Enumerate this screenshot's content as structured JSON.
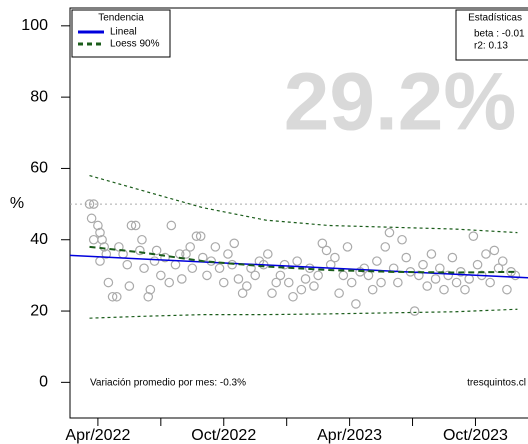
{
  "chart_data": {
    "type": "scatter",
    "y_label": "%",
    "big_value": "29.2%",
    "legend_title": "Tendencia",
    "stats_title": "Estadísticas",
    "stats": [
      "beta : -0.01",
      "r2: 0.13"
    ],
    "footnote_left": "Variación promedio por mes: -0.3%",
    "footnote_right": "tresquintos.cl",
    "xlim": [
      -1.33,
      20.6
    ],
    "ylim": [
      -10,
      105
    ],
    "xticks": [
      {
        "value": 0,
        "label": "Apr/2022"
      },
      {
        "value": 6,
        "label": "Oct/2022"
      },
      {
        "value": 12,
        "label": "Apr/2023"
      },
      {
        "value": 18,
        "label": "Oct/2023"
      }
    ],
    "xminorticks": [
      3,
      9,
      15
    ],
    "yticks": [
      0,
      20,
      40,
      60,
      80,
      100
    ],
    "reference_line": 50,
    "point_color": "#aaaaaa",
    "x": [
      -0.4,
      -0.2,
      -0.3,
      0,
      0.1,
      0.2,
      0.3,
      -0.2,
      0.1,
      0.4,
      0.5,
      0.7,
      0.9,
      1.0,
      1.2,
      1.4,
      1.5,
      1.6,
      1.8,
      2.0,
      2.1,
      2.2,
      2.4,
      2.5,
      2.7,
      2.8,
      3.0,
      3.2,
      3.4,
      3.5,
      3.7,
      3.9,
      4.0,
      4.2,
      4.4,
      4.5,
      4.7,
      4.9,
      5.0,
      5.2,
      5.4,
      5.6,
      5.8,
      6.0,
      6.2,
      6.4,
      6.5,
      6.7,
      6.9,
      7.1,
      7.3,
      7.5,
      7.7,
      7.9,
      8.1,
      8.3,
      8.5,
      8.7,
      8.9,
      9.1,
      9.3,
      9.5,
      9.7,
      9.9,
      10.1,
      10.3,
      10.5,
      10.7,
      10.9,
      11.1,
      11.3,
      11.5,
      11.7,
      11.9,
      12.1,
      12.3,
      12.5,
      12.7,
      12.9,
      13.1,
      13.3,
      13.5,
      13.7,
      13.9,
      14.1,
      14.3,
      14.5,
      14.7,
      14.9,
      15.1,
      15.3,
      15.5,
      15.7,
      15.9,
      16.1,
      16.3,
      16.5,
      16.7,
      16.9,
      17.1,
      17.3,
      17.5,
      17.7,
      17.9,
      18.1,
      18.3,
      18.5,
      18.7,
      18.9,
      19.1,
      19.3,
      19.5,
      19.7,
      19.9
    ],
    "values": [
      50,
      50,
      46,
      44,
      42,
      40,
      38,
      40,
      34,
      36,
      28,
      24,
      24,
      38,
      36,
      33,
      27,
      44,
      44,
      37,
      40,
      32,
      24,
      26,
      34,
      37,
      30,
      35,
      28,
      44,
      33,
      36,
      29,
      36,
      38,
      32,
      41,
      41,
      35,
      30,
      34,
      38,
      32,
      28,
      36,
      33,
      39,
      29,
      25,
      27,
      32,
      30,
      34,
      33,
      36,
      25,
      28,
      30,
      33,
      28,
      24,
      34,
      26,
      29,
      32,
      27,
      30,
      39,
      37,
      33,
      35,
      25,
      30,
      38,
      28,
      22,
      31,
      32,
      30,
      26,
      34,
      28,
      38,
      42,
      32,
      28,
      40,
      35,
      31,
      20,
      30,
      33,
      27,
      36,
      29,
      32,
      26,
      30,
      35,
      28,
      31,
      26,
      29,
      41,
      33,
      30,
      36,
      28,
      37,
      32,
      34,
      26,
      31,
      30
    ],
    "series": [
      {
        "name": "Lineal",
        "color": "#0000dd",
        "x": [
          -1.33,
          20.6
        ],
        "values": [
          35.6,
          29.3
        ]
      },
      {
        "name": "Loess 90%",
        "color": "#1a5c1a",
        "x": [
          -0.4,
          2,
          5,
          8,
          11,
          14,
          17,
          20
        ],
        "values": [
          38,
          36.5,
          34,
          32.5,
          31.5,
          31,
          30.8,
          31
        ]
      }
    ],
    "band_upper": {
      "x": [
        -0.4,
        2,
        5,
        8,
        11,
        14,
        17,
        20
      ],
      "values": [
        58,
        54,
        49,
        45.5,
        44,
        43.5,
        43,
        42
      ]
    },
    "band_lower": {
      "x": [
        -0.4,
        2,
        5,
        8,
        11,
        14,
        17,
        20
      ],
      "values": [
        18,
        18.5,
        19,
        19,
        19.2,
        19.5,
        19.8,
        20.5
      ]
    }
  }
}
